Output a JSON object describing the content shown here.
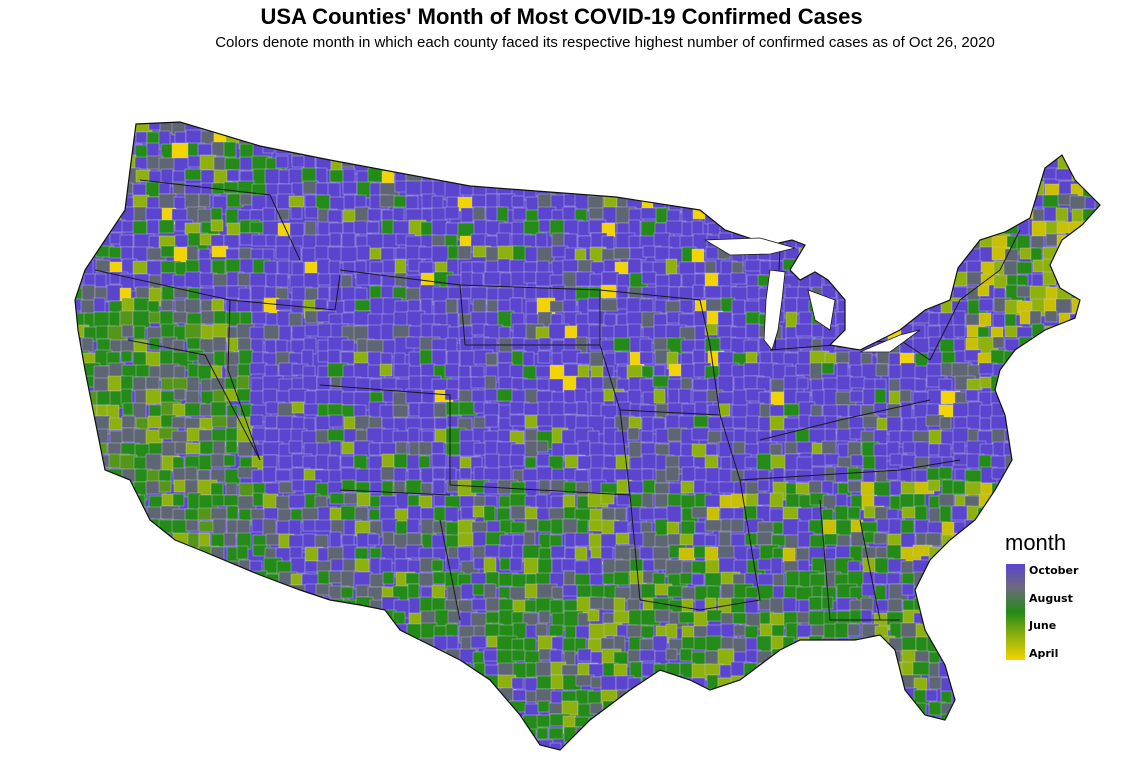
{
  "title": "USA Counties' Month of Most COVID-19 Confirmed Cases",
  "subtitle": "Colors denote month in which each county faced its respective highest number of confirmed cases as of Oct 26, 2020",
  "legend": {
    "title": "month",
    "entries": [
      {
        "label": "October",
        "color": "#5b45cf"
      },
      {
        "label": "August",
        "color": "#248a18"
      },
      {
        "label": "June",
        "color": "#8fb10e"
      },
      {
        "label": "April",
        "color": "#f2d400"
      }
    ],
    "gradient": [
      "#5b45cf",
      "#6b6b7b",
      "#248a18",
      "#8fb10e",
      "#f2d400"
    ]
  },
  "colors": {
    "october": "#5b45cf",
    "september": "#5e6573",
    "august": "#248a18",
    "july": "#55951a",
    "june": "#8fb10e",
    "may": "#c9c000",
    "april": "#f2d400"
  }
}
